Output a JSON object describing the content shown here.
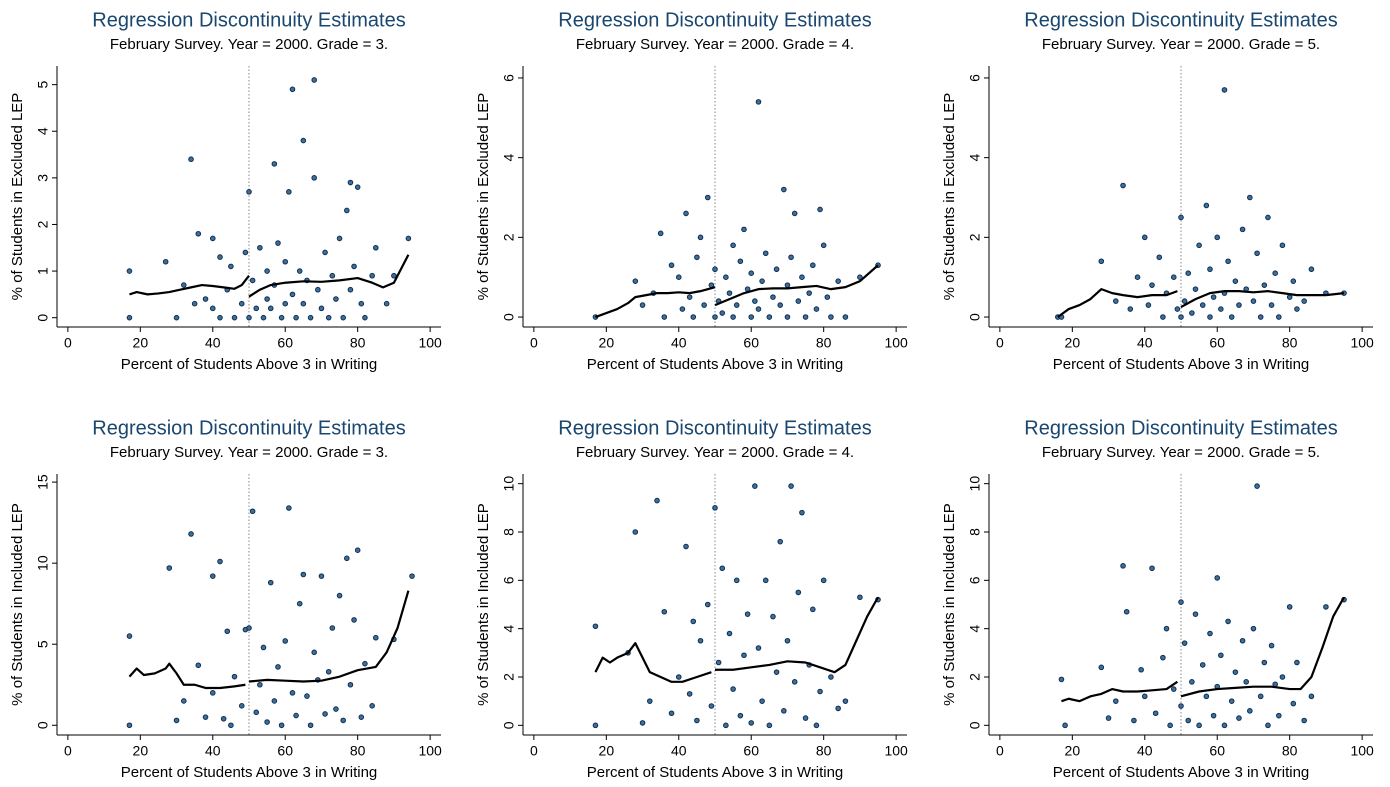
{
  "chart_data": [
    {
      "type": "scatter",
      "title": "Regression Discontinuity Estimates",
      "subtitle": "February Survey. Year = 2000. Grade = 3.",
      "x_label": "Percent of Students Above 3 in Writing",
      "y_label": "% of Students in Excluded LEP",
      "x": [
        17,
        17,
        27,
        30,
        32,
        34,
        35,
        36,
        38,
        40,
        40,
        42,
        42,
        44,
        45,
        46,
        48,
        49,
        50,
        50,
        51,
        52,
        53,
        54,
        55,
        55,
        56,
        57,
        57,
        58,
        59,
        60,
        60,
        61,
        62,
        62,
        63,
        64,
        65,
        65,
        66,
        67,
        68,
        68,
        69,
        70,
        71,
        72,
        73,
        74,
        75,
        76,
        77,
        78,
        78,
        79,
        80,
        81,
        82,
        84,
        85,
        88,
        90,
        94
      ],
      "values": [
        1.0,
        0,
        1.2,
        0,
        0.7,
        3.4,
        0.3,
        1.8,
        0.4,
        1.7,
        0.2,
        1.3,
        0,
        0.6,
        1.1,
        0,
        0.3,
        1.4,
        2.7,
        0,
        0.8,
        0.2,
        1.5,
        0,
        1.0,
        0.4,
        0.2,
        3.3,
        0.7,
        1.6,
        0,
        1.2,
        0.3,
        2.7,
        4.9,
        0.5,
        0,
        1.0,
        3.8,
        0.3,
        0.8,
        0,
        5.1,
        3.0,
        0.6,
        0.2,
        1.4,
        0,
        0.9,
        0.4,
        1.7,
        0,
        2.3,
        2.9,
        0.6,
        1.1,
        2.8,
        0.3,
        0,
        0.9,
        1.5,
        0.3,
        0.9,
        1.7
      ],
      "color": "#3d6f98",
      "fit": {
        "color": "#000000",
        "x": [
          17,
          19,
          22,
          25,
          28,
          31,
          34,
          37,
          40,
          43,
          46,
          48,
          50,
          50,
          50,
          53,
          56,
          60,
          65,
          70,
          75,
          80,
          84,
          87,
          90,
          94
        ],
        "values": [
          0.5,
          0.55,
          0.5,
          0.52,
          0.55,
          0.6,
          0.65,
          0.7,
          0.68,
          0.65,
          0.62,
          0.7,
          0.9,
          null,
          0.45,
          0.6,
          0.7,
          0.75,
          0.78,
          0.77,
          0.8,
          0.85,
          0.75,
          0.65,
          0.75,
          1.35
        ]
      },
      "cutoff": 50,
      "xlim": [
        -3,
        103
      ],
      "xticks": [
        0,
        20,
        40,
        60,
        80,
        100
      ],
      "ylim": [
        -0.2,
        5.4
      ],
      "yticks": [
        0,
        1,
        2,
        3,
        4,
        5
      ]
    },
    {
      "type": "scatter",
      "title": "Regression Discontinuity Estimates",
      "subtitle": "February Survey. Year = 2000. Grade = 4.",
      "x_label": "Percent of Students Above 3 in Writing",
      "y_label": "% of Students in Excluded LEP",
      "x": [
        17,
        28,
        30,
        33,
        35,
        36,
        38,
        40,
        41,
        42,
        43,
        44,
        45,
        46,
        47,
        48,
        49,
        50,
        50,
        51,
        52,
        53,
        54,
        55,
        55,
        56,
        57,
        58,
        59,
        60,
        60,
        61,
        62,
        62,
        63,
        64,
        65,
        66,
        67,
        68,
        69,
        70,
        70,
        71,
        72,
        73,
        74,
        75,
        76,
        77,
        78,
        79,
        80,
        81,
        82,
        84,
        86,
        90,
        95
      ],
      "values": [
        0,
        0.9,
        0.3,
        0.6,
        2.1,
        0,
        1.3,
        1.0,
        0.2,
        2.6,
        0.5,
        0,
        1.5,
        2.0,
        0.3,
        3.0,
        0.8,
        0,
        1.2,
        0.4,
        0.1,
        1.0,
        0.6,
        0,
        1.8,
        0.3,
        1.4,
        2.2,
        0.7,
        0,
        1.1,
        0.4,
        5.4,
        0.2,
        0.9,
        1.6,
        0,
        0.5,
        1.2,
        0.3,
        3.2,
        0,
        0.8,
        1.5,
        2.6,
        0.4,
        1.0,
        0,
        0.6,
        1.3,
        0.2,
        2.7,
        1.8,
        0.5,
        0,
        0.9,
        0,
        1.0,
        1.3
      ],
      "color": "#3d6f98",
      "fit": {
        "color": "#000000",
        "x": [
          17,
          20,
          23,
          26,
          28,
          31,
          34,
          37,
          40,
          43,
          46,
          50,
          50,
          50,
          54,
          58,
          62,
          66,
          70,
          74,
          78,
          82,
          86,
          90,
          95
        ],
        "values": [
          0,
          0.1,
          0.2,
          0.35,
          0.5,
          0.55,
          0.6,
          0.6,
          0.62,
          0.6,
          0.65,
          0.75,
          null,
          0.3,
          0.45,
          0.6,
          0.7,
          0.72,
          0.72,
          0.75,
          0.78,
          0.7,
          0.75,
          0.9,
          1.3
        ]
      },
      "cutoff": 50,
      "xlim": [
        -3,
        103
      ],
      "xticks": [
        0,
        20,
        40,
        60,
        80,
        100
      ],
      "ylim": [
        -0.25,
        6.3
      ],
      "yticks": [
        0,
        2,
        4,
        6
      ]
    },
    {
      "type": "scatter",
      "title": "Regression Discontinuity Estimates",
      "subtitle": "February Survey. Year = 2000. Grade = 5.",
      "x_label": "Percent of Students Above 3 in Writing",
      "y_label": "% of Students in Excluded LEP",
      "x": [
        16,
        17,
        28,
        32,
        34,
        36,
        38,
        40,
        41,
        42,
        44,
        45,
        46,
        48,
        49,
        50,
        50,
        51,
        52,
        53,
        54,
        55,
        56,
        57,
        58,
        58,
        59,
        60,
        61,
        62,
        62,
        63,
        64,
        65,
        66,
        67,
        68,
        69,
        70,
        71,
        72,
        73,
        74,
        75,
        76,
        77,
        78,
        80,
        81,
        82,
        84,
        86,
        90,
        95
      ],
      "values": [
        0,
        0,
        1.4,
        0.4,
        3.3,
        0.2,
        1.0,
        2.0,
        0.3,
        0.8,
        1.5,
        0,
        0.6,
        1.0,
        0.2,
        2.5,
        0,
        0.4,
        1.1,
        0.1,
        0.7,
        1.8,
        0.3,
        2.8,
        0,
        1.2,
        0.5,
        2.0,
        0.2,
        5.7,
        0.6,
        1.4,
        0,
        0.9,
        0.3,
        2.2,
        0.7,
        3.0,
        0.4,
        1.6,
        0,
        0.8,
        2.5,
        0.3,
        1.1,
        0,
        1.8,
        0.5,
        0.9,
        0.2,
        0.4,
        1.2,
        0.6,
        0.6
      ],
      "color": "#3d6f98",
      "fit": {
        "color": "#000000",
        "x": [
          16,
          19,
          22,
          25,
          28,
          31,
          34,
          38,
          42,
          46,
          49,
          50,
          50,
          54,
          58,
          62,
          66,
          70,
          74,
          78,
          82,
          86,
          90,
          95
        ],
        "values": [
          0,
          0.2,
          0.3,
          0.45,
          0.7,
          0.6,
          0.55,
          0.5,
          0.55,
          0.55,
          0.65,
          null,
          0.25,
          0.45,
          0.6,
          0.65,
          0.65,
          0.62,
          0.65,
          0.6,
          0.55,
          0.55,
          0.55,
          0.6
        ]
      },
      "cutoff": 50,
      "xlim": [
        -3,
        103
      ],
      "xticks": [
        0,
        20,
        40,
        60,
        80,
        100
      ],
      "ylim": [
        -0.25,
        6.3
      ],
      "yticks": [
        0,
        2,
        4,
        6
      ]
    },
    {
      "type": "scatter",
      "title": "Regression Discontinuity Estimates",
      "subtitle": "February Survey. Year = 2000. Grade = 3.",
      "x_label": "Percent of Students Above 3 in Writing",
      "y_label": "% of Students in Included LEP",
      "x": [
        17,
        17,
        28,
        30,
        32,
        34,
        36,
        38,
        40,
        40,
        42,
        43,
        44,
        45,
        46,
        48,
        49,
        50,
        51,
        52,
        53,
        54,
        55,
        56,
        57,
        58,
        59,
        60,
        61,
        62,
        63,
        64,
        65,
        66,
        67,
        68,
        69,
        70,
        71,
        72,
        73,
        74,
        75,
        76,
        77,
        78,
        79,
        80,
        81,
        82,
        84,
        85,
        90,
        95
      ],
      "values": [
        5.5,
        0,
        9.7,
        0.3,
        1.5,
        11.8,
        3.7,
        0.5,
        9.2,
        2.0,
        10.1,
        0.4,
        5.8,
        0,
        3.0,
        1.2,
        5.9,
        6.0,
        13.2,
        0.8,
        2.5,
        4.8,
        0.2,
        8.8,
        1.5,
        3.6,
        0,
        5.2,
        13.4,
        2.0,
        0.6,
        7.5,
        9.3,
        1.8,
        0,
        4.5,
        2.8,
        9.2,
        0.7,
        3.3,
        6.0,
        1.0,
        8.0,
        0.3,
        10.3,
        2.5,
        6.5,
        10.8,
        0.5,
        3.8,
        1.2,
        5.4,
        5.3,
        9.2
      ],
      "color": "#3d6f98",
      "fit": {
        "color": "#000000",
        "x": [
          17,
          19,
          21,
          24,
          27,
          28,
          30,
          32,
          35,
          38,
          42,
          46,
          49,
          50,
          50,
          55,
          60,
          65,
          70,
          75,
          80,
          85,
          88,
          91,
          94
        ],
        "values": [
          3.0,
          3.5,
          3.1,
          3.2,
          3.5,
          3.8,
          3.2,
          2.5,
          2.5,
          2.3,
          2.3,
          2.4,
          2.5,
          null,
          2.7,
          2.8,
          2.75,
          2.7,
          2.75,
          3.0,
          3.4,
          3.6,
          4.5,
          6.0,
          8.3
        ]
      },
      "cutoff": 50,
      "xlim": [
        -3,
        103
      ],
      "xticks": [
        0,
        20,
        40,
        60,
        80,
        100
      ],
      "ylim": [
        -0.6,
        15.5
      ],
      "yticks": [
        0,
        5,
        10,
        15
      ]
    },
    {
      "type": "scatter",
      "title": "Regression Discontinuity Estimates",
      "subtitle": "February Survey. Year = 2000. Grade = 4.",
      "x_label": "Percent of Students Above 3 in Writing",
      "y_label": "% of Students in Included LEP",
      "x": [
        17,
        17,
        26,
        28,
        30,
        32,
        34,
        36,
        38,
        40,
        42,
        43,
        44,
        45,
        46,
        48,
        49,
        50,
        51,
        52,
        53,
        54,
        55,
        56,
        57,
        58,
        59,
        60,
        61,
        62,
        63,
        64,
        65,
        66,
        67,
        68,
        69,
        70,
        71,
        72,
        73,
        74,
        75,
        76,
        77,
        78,
        79,
        80,
        82,
        84,
        86,
        90,
        95
      ],
      "values": [
        4.1,
        0,
        3.0,
        8.0,
        0.1,
        1.0,
        9.3,
        4.7,
        0.5,
        2.0,
        7.4,
        1.3,
        4.3,
        0.2,
        3.5,
        5.0,
        0.8,
        9.0,
        2.6,
        6.5,
        0,
        3.8,
        1.5,
        6.0,
        0.4,
        2.9,
        4.6,
        0.1,
        9.9,
        3.2,
        1.0,
        6.0,
        0,
        4.5,
        2.2,
        7.6,
        0.6,
        3.5,
        9.9,
        1.8,
        5.5,
        8.8,
        0.3,
        2.5,
        4.8,
        0,
        1.4,
        6.0,
        2.0,
        0.7,
        1.0,
        5.3,
        5.2
      ],
      "color": "#3d6f98",
      "fit": {
        "color": "#000000",
        "x": [
          17,
          19,
          21,
          23,
          26,
          28,
          30,
          32,
          35,
          38,
          41,
          45,
          49,
          50,
          50,
          55,
          60,
          65,
          70,
          75,
          79,
          83,
          86,
          89,
          92,
          95
        ],
        "values": [
          2.2,
          2.8,
          2.6,
          2.8,
          3.0,
          3.4,
          2.8,
          2.2,
          2.0,
          1.8,
          1.8,
          2.0,
          2.2,
          null,
          2.3,
          2.3,
          2.4,
          2.5,
          2.65,
          2.6,
          2.4,
          2.2,
          2.5,
          3.5,
          4.5,
          5.3
        ]
      },
      "cutoff": 50,
      "xlim": [
        -3,
        103
      ],
      "xticks": [
        0,
        20,
        40,
        60,
        80,
        100
      ],
      "ylim": [
        -0.4,
        10.4
      ],
      "yticks": [
        0,
        2,
        4,
        6,
        8,
        10
      ]
    },
    {
      "type": "scatter",
      "title": "Regression Discontinuity Estimates",
      "subtitle": "February Survey. Year = 2000. Grade = 5.",
      "x_label": "Percent of Students Above 3 in Writing",
      "y_label": "% of Students in Included LEP",
      "x": [
        17,
        18,
        28,
        30,
        32,
        34,
        35,
        37,
        39,
        40,
        42,
        43,
        45,
        46,
        47,
        48,
        50,
        50,
        51,
        52,
        53,
        54,
        55,
        56,
        57,
        58,
        59,
        60,
        60,
        61,
        62,
        63,
        64,
        65,
        66,
        67,
        68,
        69,
        70,
        71,
        72,
        73,
        74,
        75,
        76,
        77,
        78,
        80,
        81,
        82,
        84,
        86,
        90,
        95
      ],
      "values": [
        1.9,
        0,
        2.4,
        0.3,
        1.0,
        6.6,
        4.7,
        0.2,
        2.3,
        1.2,
        6.5,
        0.5,
        2.8,
        4.0,
        0,
        1.5,
        5.1,
        0.8,
        3.4,
        0.2,
        1.8,
        4.6,
        0,
        2.5,
        1.2,
        3.8,
        0.4,
        6.1,
        1.6,
        2.9,
        0,
        4.3,
        1.0,
        2.2,
        0.3,
        3.5,
        1.8,
        0.6,
        4.0,
        9.9,
        1.2,
        2.6,
        0,
        3.3,
        1.7,
        0.4,
        2.0,
        4.9,
        0.9,
        2.6,
        0.2,
        1.2,
        4.9,
        5.2
      ],
      "color": "#3d6f98",
      "fit": {
        "color": "#000000",
        "x": [
          17,
          19,
          22,
          25,
          28,
          31,
          34,
          38,
          42,
          46,
          49,
          50,
          50,
          55,
          60,
          65,
          70,
          75,
          80,
          83,
          86,
          89,
          92,
          95
        ],
        "values": [
          1.0,
          1.1,
          1.0,
          1.2,
          1.3,
          1.5,
          1.4,
          1.4,
          1.45,
          1.5,
          1.8,
          null,
          1.2,
          1.4,
          1.5,
          1.55,
          1.6,
          1.6,
          1.5,
          1.5,
          2.0,
          3.2,
          4.5,
          5.3
        ]
      },
      "cutoff": 50,
      "xlim": [
        -3,
        103
      ],
      "xticks": [
        0,
        20,
        40,
        60,
        80,
        100
      ],
      "ylim": [
        -0.4,
        10.4
      ],
      "yticks": [
        0,
        2,
        4,
        6,
        8,
        10
      ]
    }
  ]
}
